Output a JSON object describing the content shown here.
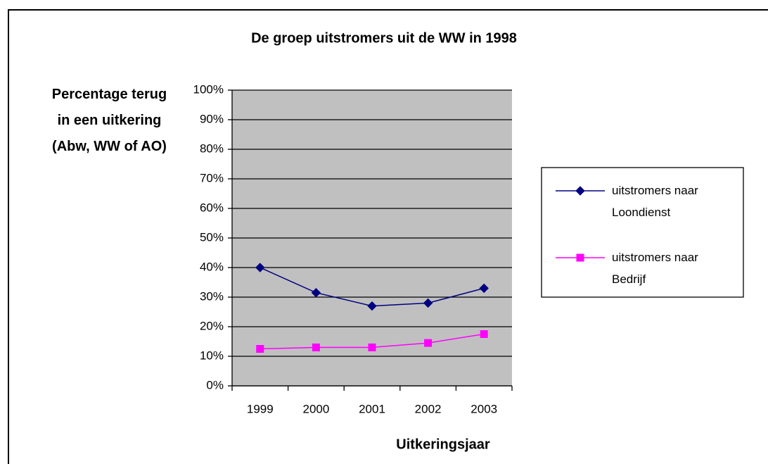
{
  "chart_data": {
    "type": "line",
    "title": "De groep uitstromers uit de WW in 1998",
    "y_label": "Percentage terug in een uitkering (Abw, WW of AO)",
    "x_label": "Uitkeringsjaar",
    "categories": [
      "1999",
      "2000",
      "2001",
      "2002",
      "2003"
    ],
    "series": [
      {
        "name": "uitstromers naar Loondienst",
        "color": "#000080",
        "marker": "diamond",
        "values": [
          40,
          31.5,
          27,
          28,
          33
        ]
      },
      {
        "name": "uitstromers naar Bedrijf",
        "color": "#ff00ff",
        "marker": "square",
        "values": [
          12.5,
          13,
          13,
          14.5,
          17.5
        ]
      }
    ],
    "ylim": [
      0,
      100
    ],
    "yticks": [
      {
        "value": 0,
        "label": "0%"
      },
      {
        "value": 10,
        "label": "10%"
      },
      {
        "value": 20,
        "label": "20%"
      },
      {
        "value": 30,
        "label": "30%"
      },
      {
        "value": 40,
        "label": "40%"
      },
      {
        "value": 50,
        "label": "50%"
      },
      {
        "value": 60,
        "label": "60%"
      },
      {
        "value": 70,
        "label": "70%"
      },
      {
        "value": 80,
        "label": "80%"
      },
      {
        "value": 90,
        "label": "90%"
      },
      {
        "value": 100,
        "label": "100%"
      }
    ],
    "grid": true,
    "plot_background": "#c0c0c0",
    "legend": "right"
  }
}
